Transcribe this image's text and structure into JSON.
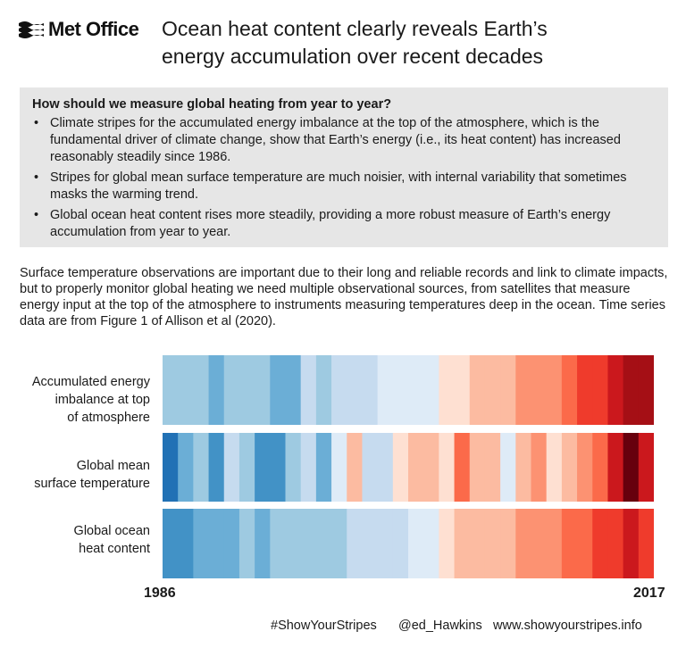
{
  "header": {
    "logo_text": "Met Office",
    "headline_line1": "Ocean heat content clearly reveals Earth’s",
    "headline_line2": "energy accumulation over recent decades"
  },
  "infobox": {
    "question": "How should we measure global heating from year to year?",
    "bullets": [
      "Climate stripes for the accumulated energy imbalance at the top of the atmosphere, which is the fundamental driver of climate change, show that Earth’s energy (i.e., its heat content) has increased reasonably steadily since 1986.",
      "Stripes for global mean surface temperature are much noisier, with internal variability that sometimes masks the warming trend.",
      "Global ocean heat content rises more steadily, providing a more robust measure of Earth’s energy accumulation from year to year."
    ]
  },
  "paragraph": "Surface temperature observations are important due to their long and reliable records and link to climate impacts, but to properly monitor global heating we need multiple observational sources, from satellites that measure energy input at the top of the atmosphere to instruments measuring temperatures deep in the ocean. Time series data are from Figure 1 of Allison et al (2020).",
  "chart_data": {
    "type": "heatmap",
    "x_start_label": "1986",
    "x_end_label": "2017",
    "years": [
      1986,
      1987,
      1988,
      1989,
      1990,
      1991,
      1992,
      1993,
      1994,
      1995,
      1996,
      1997,
      1998,
      1999,
      2000,
      2001,
      2002,
      2003,
      2004,
      2005,
      2006,
      2007,
      2008,
      2009,
      2010,
      2011,
      2012,
      2013,
      2014,
      2015,
      2016,
      2017
    ],
    "color_scale": [
      "#08519c",
      "#2171b5",
      "#4292c6",
      "#6baed6",
      "#9ecae1",
      "#c6dbef",
      "#deebf7",
      "#fee0d2",
      "#fcbba1",
      "#fc9272",
      "#fb6a4a",
      "#ef3b2c",
      "#cb181d",
      "#a50f15",
      "#67000d"
    ],
    "rows": [
      {
        "label_lines": [
          "Accumulated energy",
          "imbalance at top",
          "of atmosphere"
        ],
        "levels": [
          4,
          4,
          4,
          3,
          4,
          4,
          4,
          3,
          3,
          5,
          4,
          5,
          5,
          5,
          6,
          6,
          6,
          6,
          7,
          7,
          8,
          8,
          8,
          9,
          9,
          9,
          10,
          11,
          11,
          12,
          13,
          13
        ]
      },
      {
        "label_lines": [
          "Global mean",
          "surface temperature"
        ],
        "levels": [
          1,
          3,
          4,
          2,
          5,
          4,
          2,
          2,
          4,
          5,
          3,
          6,
          8,
          5,
          5,
          7,
          8,
          8,
          7,
          10,
          8,
          8,
          6,
          8,
          9,
          7,
          8,
          9,
          10,
          12,
          14,
          12
        ]
      },
      {
        "label_lines": [
          "Global ocean",
          "heat content"
        ],
        "levels": [
          2,
          2,
          3,
          3,
          3,
          4,
          3,
          4,
          4,
          4,
          4,
          4,
          5,
          5,
          5,
          5,
          6,
          6,
          7,
          8,
          8,
          8,
          8,
          9,
          9,
          9,
          10,
          10,
          11,
          11,
          12,
          11
        ]
      }
    ]
  },
  "footer": {
    "hashtag": "#ShowYourStripes",
    "handle": "@ed_Hawkins",
    "url": "www.showyourstripes.info"
  }
}
